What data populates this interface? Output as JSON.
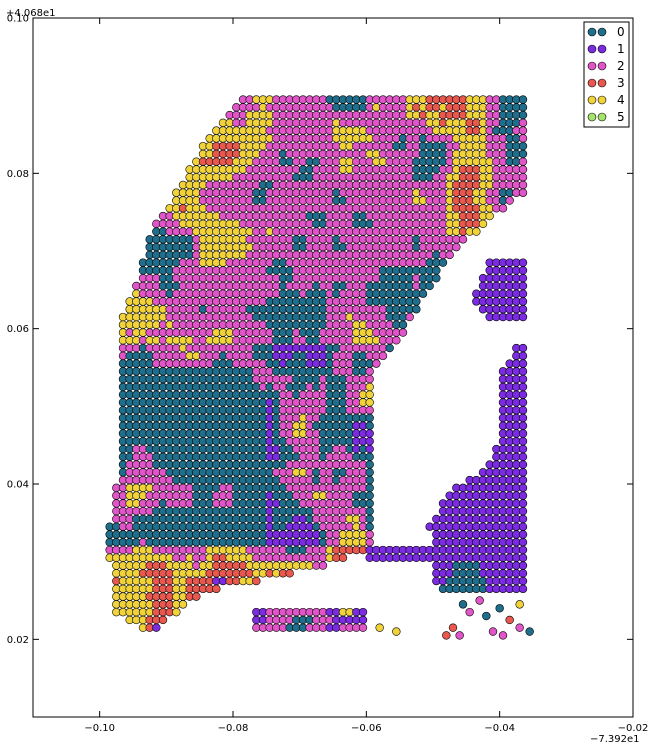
{
  "chart_data": {
    "type": "scatter",
    "x_offset_label": "−7.392e1",
    "y_offset_label": "+4.068e1",
    "xlim": [
      -0.11,
      -0.02
    ],
    "ylim": [
      0.01,
      0.1
    ],
    "xticks": [
      -0.1,
      -0.08,
      -0.06,
      -0.04,
      -0.02
    ],
    "xtick_labels": [
      "−0.10",
      "−0.08",
      "−0.06",
      "−0.04",
      "−0.02"
    ],
    "yticks": [
      0.02,
      0.04,
      0.06,
      0.08,
      0.1
    ],
    "ytick_labels": [
      "0.02",
      "0.04",
      "0.06",
      "0.08",
      "0.10"
    ],
    "grid": false,
    "legend_position": "top-right",
    "marker_spacing": 0.001,
    "series": [
      {
        "name": "0",
        "color": "#1f6e8c"
      },
      {
        "name": "1",
        "color": "#7b2be2"
      },
      {
        "name": "2",
        "color": "#e055c8"
      },
      {
        "name": "3",
        "color": "#e8584f"
      },
      {
        "name": "4",
        "color": "#f0d23a"
      },
      {
        "name": "5",
        "color": "#a6e36a"
      }
    ],
    "regions": {
      "manhattan_polygon": [
        [
          -0.0755,
          0.0905
        ],
        [
          -0.0355,
          0.0905
        ],
        [
          -0.0355,
          0.078
        ],
        [
          -0.047,
          0.07
        ],
        [
          -0.054,
          0.06
        ],
        [
          -0.059,
          0.054
        ],
        [
          -0.059,
          0.032
        ],
        [
          -0.0655,
          0.0295
        ],
        [
          -0.0845,
          0.026
        ],
        [
          -0.0925,
          0.0205
        ],
        [
          -0.0975,
          0.023
        ],
        [
          -0.099,
          0.033
        ],
        [
          -0.0975,
          0.04
        ],
        [
          -0.0965,
          0.047
        ],
        [
          -0.0965,
          0.062
        ],
        [
          -0.094,
          0.067
        ],
        [
          -0.092,
          0.073
        ],
        [
          -0.0855,
          0.082
        ],
        [
          -0.083,
          0.086
        ],
        [
          -0.078,
          0.0905
        ]
      ],
      "queens_top_polygon": [
        [
          -0.0415,
          0.069
        ],
        [
          -0.0355,
          0.069
        ],
        [
          -0.0355,
          0.0605
        ],
        [
          -0.042,
          0.061
        ],
        [
          -0.044,
          0.064
        ]
      ],
      "brooklyn_polygon": [
        [
          -0.0375,
          0.058
        ],
        [
          -0.0355,
          0.058
        ],
        [
          -0.0355,
          0.0255
        ],
        [
          -0.0485,
          0.0255
        ],
        [
          -0.05,
          0.028
        ],
        [
          -0.0505,
          0.0345
        ],
        [
          -0.0475,
          0.039
        ],
        [
          -0.042,
          0.042
        ],
        [
          -0.04,
          0.046
        ],
        [
          -0.0405,
          0.053
        ]
      ],
      "governors_polygon": [
        [
          -0.0765,
          0.024
        ],
        [
          -0.0595,
          0.024
        ],
        [
          -0.0595,
          0.0205
        ],
        [
          -0.077,
          0.0205
        ]
      ],
      "pier_polygon": [
        [
          -0.06,
          0.032
        ],
        [
          -0.054,
          0.0325
        ],
        [
          -0.048,
          0.032
        ],
        [
          -0.048,
          0.0295
        ],
        [
          -0.056,
          0.0295
        ],
        [
          -0.06,
          0.03
        ]
      ]
    }
  },
  "legend": {
    "labels": [
      "0",
      "1",
      "2",
      "3",
      "4",
      "5"
    ]
  }
}
